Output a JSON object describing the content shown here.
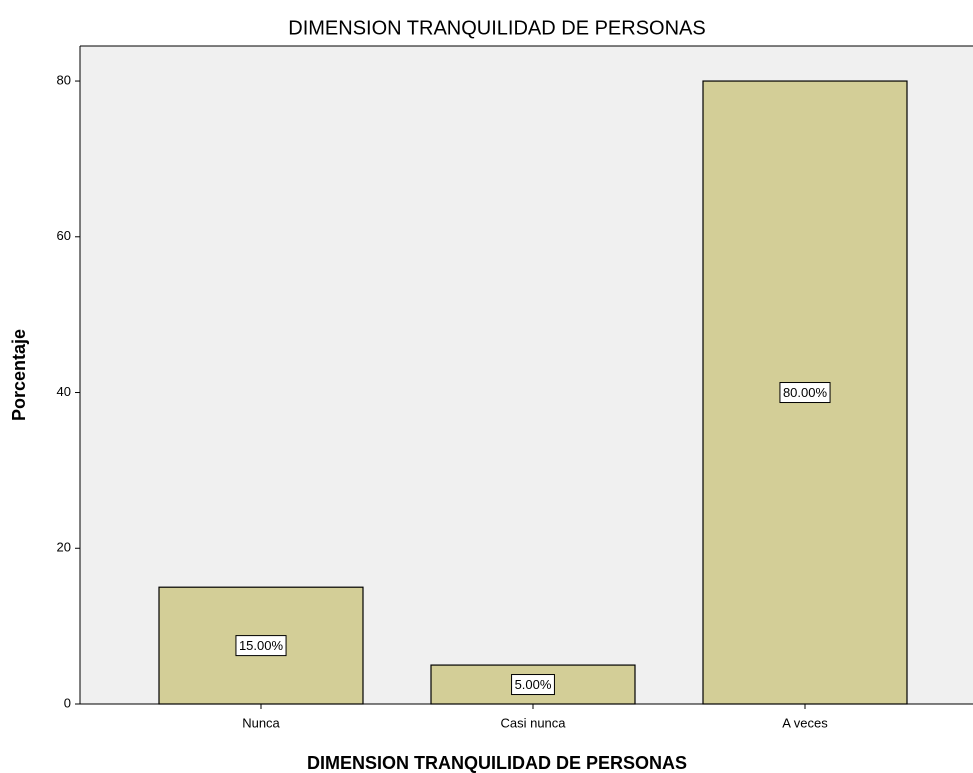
{
  "chart_data": {
    "type": "bar",
    "title": "DIMENSION TRANQUILIDAD DE PERSONAS",
    "x_label": "DIMENSION TRANQUILIDAD DE PERSONAS",
    "y_label": "Porcentaje",
    "categories": [
      "Nunca",
      "Casi nunca",
      "A veces"
    ],
    "values": [
      15,
      5,
      80
    ],
    "value_labels": [
      "15.00%",
      "5.00%",
      "80.00%"
    ],
    "color": "#d3ce97",
    "ylim": [
      0,
      84.5
    ],
    "yticks": [
      0,
      20,
      40,
      60,
      80
    ],
    "grid": false
  }
}
